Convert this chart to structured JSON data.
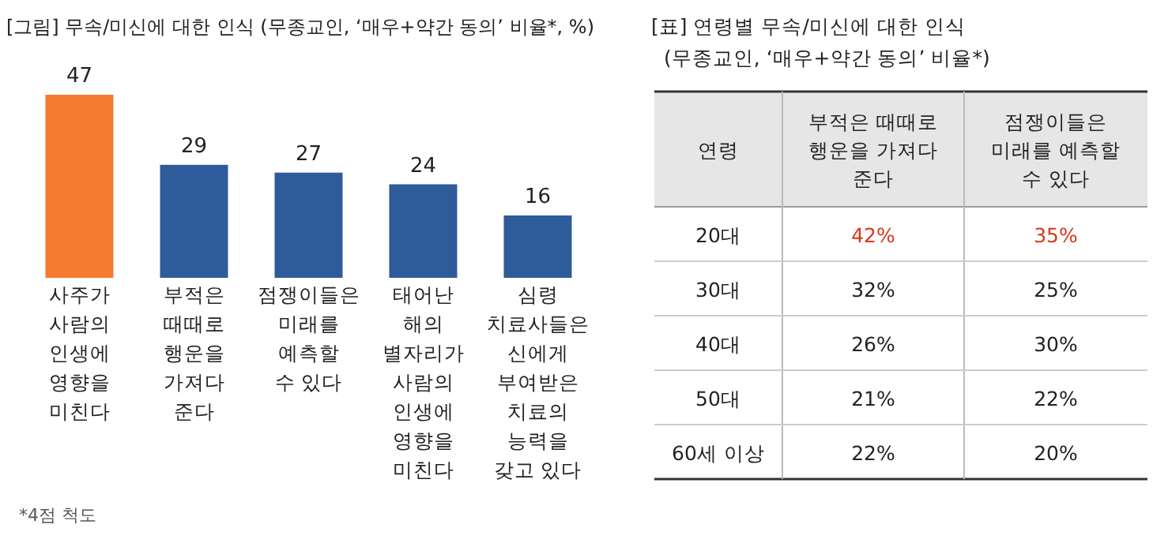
{
  "chart_data": [
    {
      "type": "bar",
      "title": "[그림] 무속/미신에 대한 인식 (무종교인, ‘매우+약간 동의’ 비율*, %)",
      "categories": [
        "사주가\n사람의\n인생에\n영향을\n미친다",
        "부적은\n때때로\n행운을\n가져다\n준다",
        "점쟁이들은\n미래를\n예측할\n수 있다",
        "태어난\n해의\n별자리가\n사람의\n인생에\n영향을\n미친다",
        "심령\n치료사들은\n신에게\n부여받은\n치료의\n능력을\n갖고 있다"
      ],
      "values": [
        47,
        29,
        27,
        24,
        16
      ],
      "colors": [
        "#f47a31",
        "#2e5b9a",
        "#2e5b9a",
        "#2e5b9a",
        "#2e5b9a"
      ],
      "data_labels": true,
      "annotations": [
        "*4점 척도"
      ]
    },
    {
      "type": "heatmap",
      "title": "[표] 연령별 무속/미신에 대한 인식",
      "subtitle": "(무종교인, ‘매우+약간 동의’ 비율*)",
      "ylabel": "연령",
      "categories": [
        "부적은 때때로\n행운을 가져다\n준다",
        "점쟁이들은\n미래를 예측할\n수 있다"
      ],
      "y_categories": [
        "20대",
        "30대",
        "40대",
        "50대",
        "60세 이상"
      ],
      "cells": [
        [
          42,
          35
        ],
        [
          32,
          25
        ],
        [
          26,
          30
        ],
        [
          21,
          22
        ],
        [
          22,
          20
        ]
      ],
      "cell_labels": [
        [
          "42%",
          "35%"
        ],
        [
          "32%",
          "25%"
        ],
        [
          "26%",
          "30%"
        ],
        [
          "21%",
          "22%"
        ],
        [
          "22%",
          "20%"
        ]
      ],
      "colors": [
        [
          "#d9381e",
          "#d9381e"
        ],
        [
          "#222222",
          "#222222"
        ],
        [
          "#222222",
          "#222222"
        ],
        [
          "#222222",
          "#222222"
        ],
        [
          "#222222",
          "#222222"
        ]
      ]
    }
  ]
}
